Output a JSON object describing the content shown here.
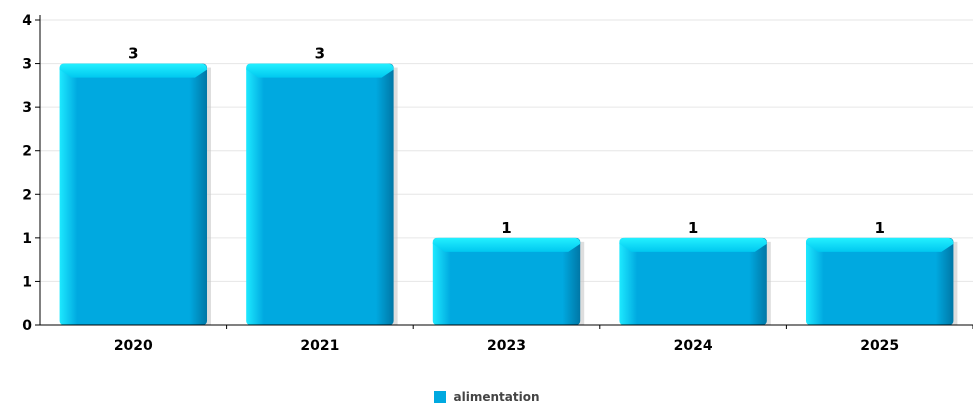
{
  "chart_data": {
    "type": "bar",
    "categories": [
      "2020",
      "2021",
      "2023",
      "2024",
      "2025"
    ],
    "series": [
      {
        "name": "alimentation",
        "values": [
          3,
          3,
          1,
          1,
          1
        ]
      }
    ],
    "data_labels": [
      "3",
      "3",
      "1",
      "1",
      "1"
    ],
    "y_tick_labels": [
      "0",
      "1",
      "1",
      "2",
      "2",
      "3",
      "3",
      "4"
    ],
    "ylim": [
      0,
      3.5
    ],
    "grid": true,
    "legend_position": "bottom-center",
    "colors": {
      "bar": "#00a9e0",
      "bar_highlight": "#1de9ff",
      "bar_shadow": "#0077a6",
      "grid": "#e6e6e6",
      "axis": "#000000"
    }
  }
}
